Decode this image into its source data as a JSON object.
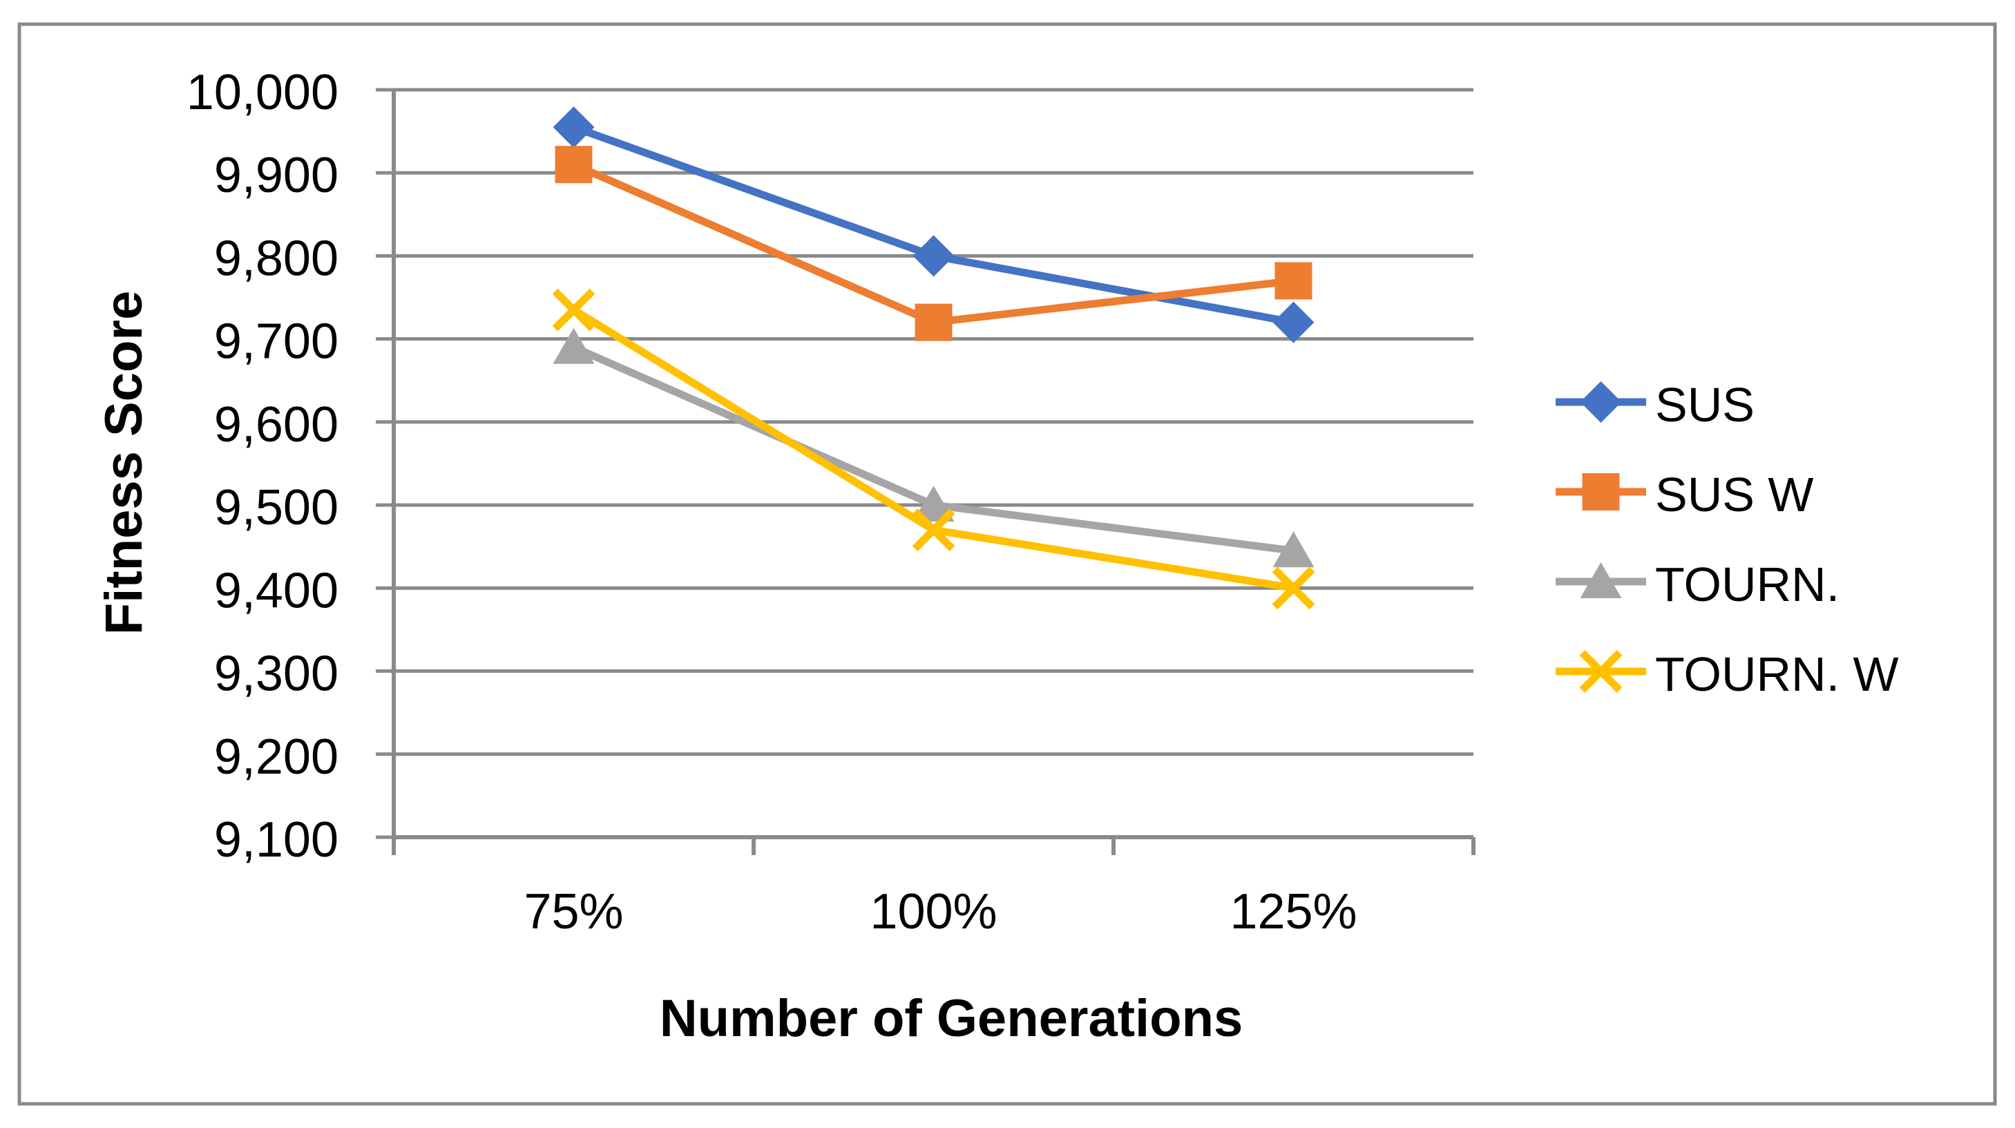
{
  "chart_data": {
    "type": "line",
    "title": "",
    "xlabel": "Number of Generations",
    "ylabel": "Fitness Score",
    "categories": [
      "75%",
      "100%",
      "125%"
    ],
    "series": [
      {
        "name": "SUS",
        "color": "#4472C4",
        "marker": "diamond",
        "values": [
          9955,
          9800,
          9720
        ]
      },
      {
        "name": "SUS W",
        "color": "#ED7D31",
        "marker": "square",
        "values": [
          9910,
          9720,
          9770
        ]
      },
      {
        "name": "TOURN.",
        "color": "#A5A5A5",
        "marker": "triangle",
        "values": [
          9690,
          9500,
          9445
        ]
      },
      {
        "name": "TOURN. W",
        "color": "#FFC000",
        "marker": "x",
        "values": [
          9735,
          9470,
          9400
        ]
      }
    ],
    "ylim": [
      9100,
      10000
    ],
    "ytick_step": 100,
    "ytick_labels": [
      "9,100",
      "9,200",
      "9,300",
      "9,400",
      "9,500",
      "9,600",
      "9,700",
      "9,800",
      "9,900",
      "10,000"
    ],
    "xtick_labels": [
      "75%",
      "100%",
      "125%"
    ],
    "grid": true,
    "legend_position": "right",
    "colors": {
      "gridline": "#8A8A8A",
      "axis": "#8A8A8A",
      "border": "#8A8A8A",
      "background": "#FFFFFF",
      "text": "#000000"
    }
  }
}
